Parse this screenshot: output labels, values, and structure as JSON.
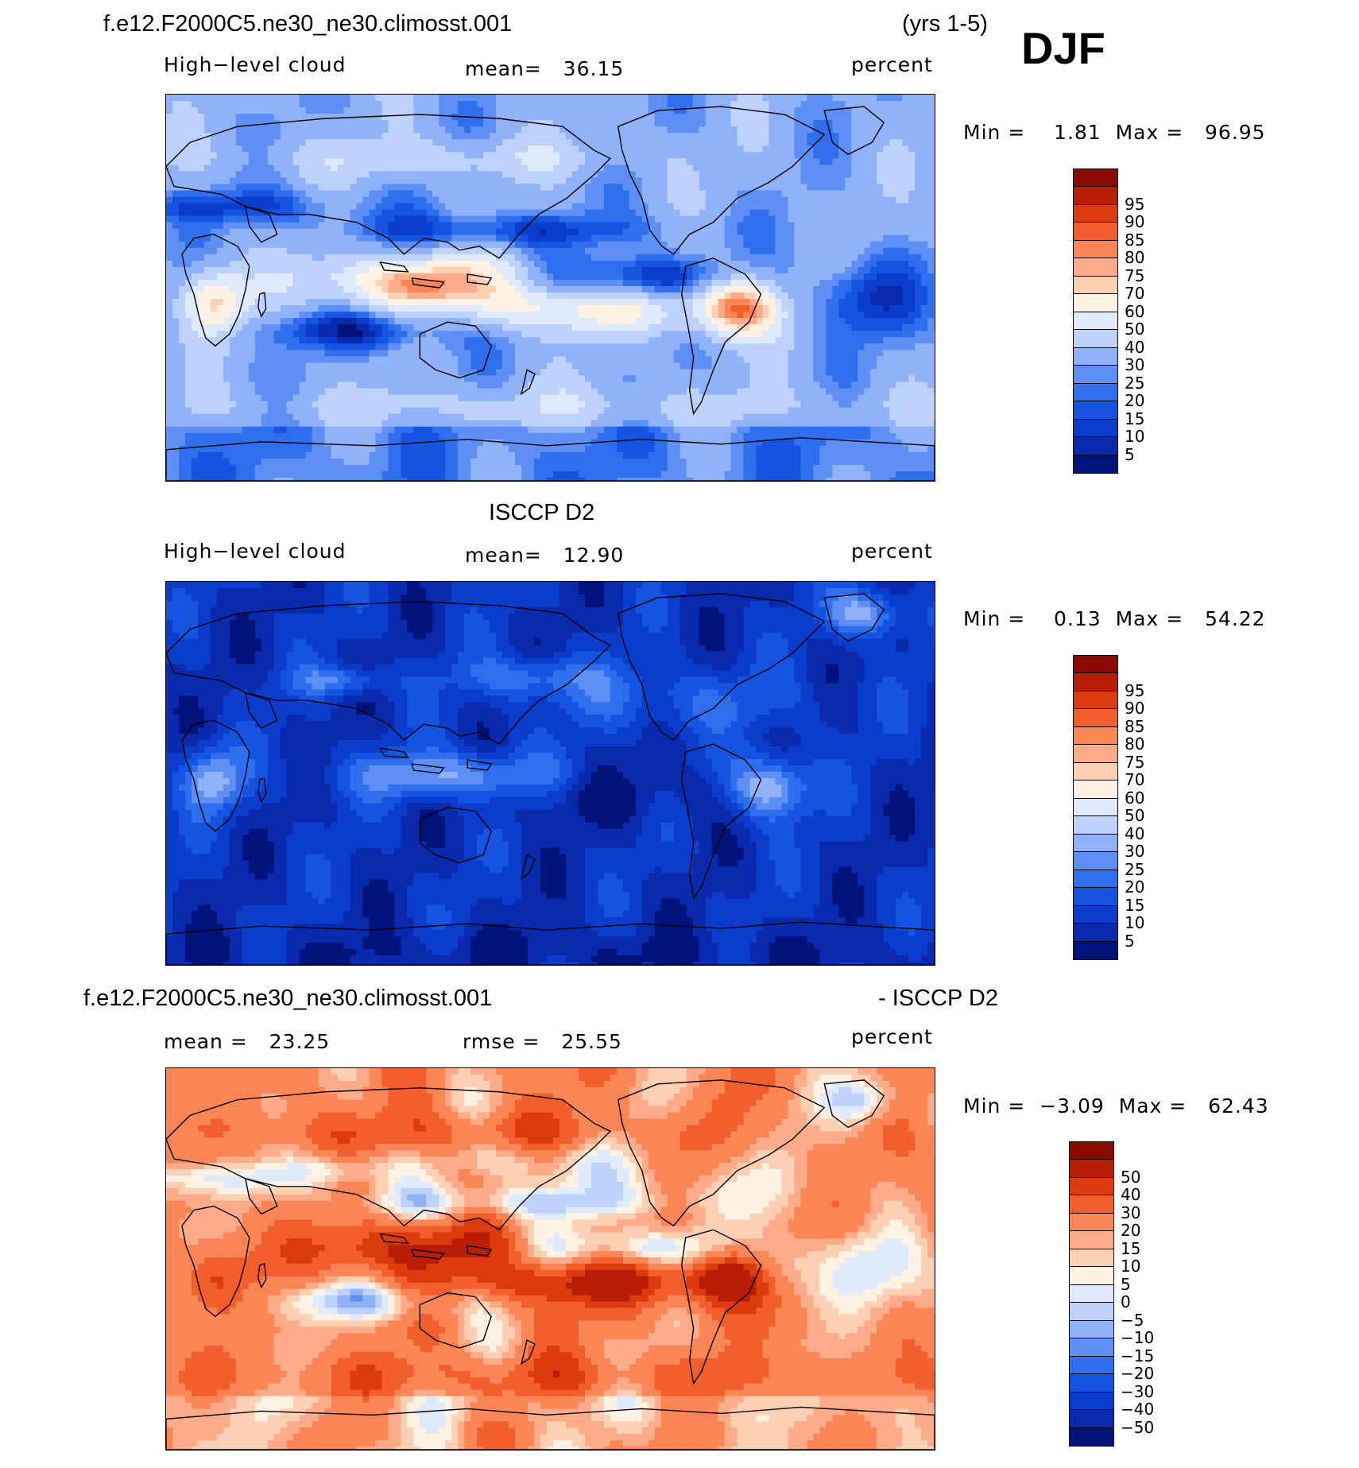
{
  "header": {
    "case_title": "f.e12.F2000C5.ne30_ne30.climosst.001",
    "years": "(yrs 1-5)",
    "season": "DJF"
  },
  "panels": [
    {
      "title": "",
      "left_label": "High−level cloud",
      "center_label": "mean=   36.15",
      "right_label": "percent",
      "minmax": "Min =    1.81  Max =   96.95",
      "colorbar": {
        "colors": [
          "#00137a",
          "#0a2aad",
          "#0b3dcc",
          "#1554e0",
          "#2f6fee",
          "#5e8ff4",
          "#90b2f8",
          "#bcd2fb",
          "#dfeafc",
          "#fff2e2",
          "#fdd0b4",
          "#fdab88",
          "#fb8554",
          "#f35f2c",
          "#dc3b0d",
          "#b81d05",
          "#8a0a00"
        ],
        "ticks": [
          "5",
          "10",
          "15",
          "20",
          "25",
          "30",
          "40",
          "50",
          "60",
          "70",
          "75",
          "80",
          "85",
          "90",
          "95"
        ]
      },
      "field": "model"
    },
    {
      "title": "ISCCP D2",
      "left_label": "High−level cloud",
      "center_label": "mean=   12.90",
      "right_label": "percent",
      "minmax": "Min =    0.13  Max =   54.22",
      "colorbar": {
        "colors": [
          "#00137a",
          "#0a2aad",
          "#0b3dcc",
          "#1554e0",
          "#2f6fee",
          "#5e8ff4",
          "#90b2f8",
          "#bcd2fb",
          "#dfeafc",
          "#fff2e2",
          "#fdd0b4",
          "#fdab88",
          "#fb8554",
          "#f35f2c",
          "#dc3b0d",
          "#b81d05",
          "#8a0a00"
        ],
        "ticks": [
          "5",
          "10",
          "15",
          "20",
          "25",
          "30",
          "40",
          "50",
          "60",
          "70",
          "75",
          "80",
          "85",
          "90",
          "95"
        ]
      },
      "field": "obs"
    },
    {
      "title_left": "f.e12.F2000C5.ne30_ne30.climosst.001",
      "title_right": "- ISCCP D2",
      "left_label": "mean =   23.25",
      "center_label": "rmse =   25.55",
      "right_label": "percent",
      "minmax": "Min =  −3.09  Max =   62.43",
      "colorbar": {
        "colors": [
          "#00137a",
          "#0a2aad",
          "#0b3dcc",
          "#1554e0",
          "#2f6fee",
          "#5e8ff4",
          "#90b2f8",
          "#bcd2fb",
          "#dfeafc",
          "#fff2e2",
          "#fdd0b4",
          "#fdab88",
          "#fb8554",
          "#f35f2c",
          "#dc3b0d",
          "#b81d05",
          "#8a0a00"
        ],
        "ticks": [
          "−50",
          "−40",
          "−30",
          "−20",
          "−15",
          "−10",
          "−5",
          "0",
          "5",
          "10",
          "15",
          "20",
          "30",
          "40",
          "50"
        ]
      },
      "field": "diff"
    }
  ],
  "chart_data": [
    {
      "type": "heatmap",
      "title": "f.e12.F2000C5.ne30_ne30.climosst.001 (yrs 1-5) DJF",
      "variable": "High-level cloud",
      "units": "percent",
      "mean": 36.15,
      "min": 1.81,
      "max": 96.95,
      "levels": [
        5,
        10,
        15,
        20,
        25,
        30,
        40,
        50,
        60,
        70,
        75,
        80,
        85,
        90,
        95
      ],
      "grid": false
    },
    {
      "type": "heatmap",
      "title": "ISCCP D2",
      "variable": "High-level cloud",
      "units": "percent",
      "mean": 12.9,
      "min": 0.13,
      "max": 54.22,
      "levels": [
        5,
        10,
        15,
        20,
        25,
        30,
        40,
        50,
        60,
        70,
        75,
        80,
        85,
        90,
        95
      ],
      "grid": false
    },
    {
      "type": "heatmap",
      "title": "f.e12.F2000C5.ne30_ne30.climosst.001 - ISCCP D2",
      "units": "percent",
      "mean": 23.25,
      "rmse": 25.55,
      "min": -3.09,
      "max": 62.43,
      "levels": [
        -50,
        -40,
        -30,
        -20,
        -15,
        -10,
        -5,
        0,
        5,
        10,
        15,
        20,
        30,
        40,
        50
      ],
      "grid": false
    }
  ]
}
